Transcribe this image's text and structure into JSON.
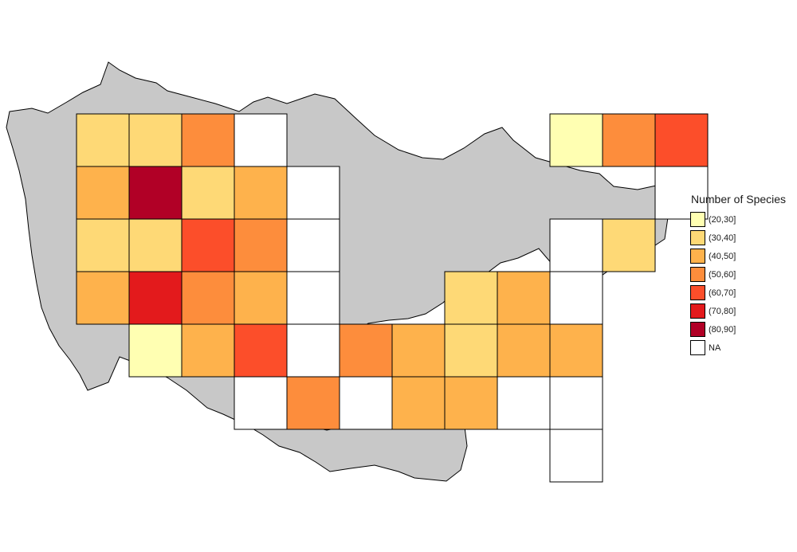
{
  "map": {
    "legend": {
      "title": "Number of Species",
      "items": [
        {
          "label": "(20,30]",
          "color": "#ffffb2"
        },
        {
          "label": "(30,40]",
          "color": "#fed976"
        },
        {
          "label": "(40,50]",
          "color": "#feb24c"
        },
        {
          "label": "(50,60]",
          "color": "#fd8d3c"
        },
        {
          "label": "(60,70]",
          "color": "#fc4e2a"
        },
        {
          "label": "(70,80]",
          "color": "#e31a1c"
        },
        {
          "label": "(80,90]",
          "color": "#b10026"
        },
        {
          "label": "NA",
          "color": "#ffffff"
        }
      ]
    },
    "land_color": "#c8c8c8",
    "grid_rows": [
      {
        "row": 1,
        "classes": [
          {
            "col": 1,
            "class": "(30,40]"
          },
          {
            "col": 2,
            "class": "(30,40]"
          },
          {
            "col": 3,
            "class": "(50,60]"
          },
          {
            "col": 4,
            "class": "NA"
          },
          {
            "col": 10,
            "class": "(20,30]"
          },
          {
            "col": 11,
            "class": "(50,60]"
          },
          {
            "col": 12,
            "class": "(60,70]"
          }
        ]
      },
      {
        "row": 2,
        "classes": [
          {
            "col": 1,
            "class": "(40,50]"
          },
          {
            "col": 2,
            "class": "(80,90]"
          },
          {
            "col": 3,
            "class": "(30,40]"
          },
          {
            "col": 4,
            "class": "(40,50]"
          },
          {
            "col": 5,
            "class": "NA"
          },
          {
            "col": 12,
            "class": "NA"
          }
        ]
      },
      {
        "row": 3,
        "classes": [
          {
            "col": 1,
            "class": "(30,40]"
          },
          {
            "col": 2,
            "class": "(30,40]"
          },
          {
            "col": 3,
            "class": "(60,70]"
          },
          {
            "col": 4,
            "class": "(50,60]"
          },
          {
            "col": 5,
            "class": "NA"
          },
          {
            "col": 10,
            "class": "NA"
          },
          {
            "col": 11,
            "class": "(30,40]"
          }
        ]
      },
      {
        "row": 4,
        "classes": [
          {
            "col": 1,
            "class": "(40,50]"
          },
          {
            "col": 2,
            "class": "(70,80]"
          },
          {
            "col": 3,
            "class": "(50,60]"
          },
          {
            "col": 4,
            "class": "(40,50]"
          },
          {
            "col": 5,
            "class": "NA"
          },
          {
            "col": 8,
            "class": "(30,40]"
          },
          {
            "col": 9,
            "class": "(40,50]"
          },
          {
            "col": 10,
            "class": "NA"
          }
        ]
      },
      {
        "row": 5,
        "classes": [
          {
            "col": 2,
            "class": "(20,30]"
          },
          {
            "col": 3,
            "class": "(40,50]"
          },
          {
            "col": 4,
            "class": "(60,70]"
          },
          {
            "col": 5,
            "class": "NA"
          },
          {
            "col": 6,
            "class": "(50,60]"
          },
          {
            "col": 7,
            "class": "(40,50]"
          },
          {
            "col": 8,
            "class": "(30,40]"
          },
          {
            "col": 9,
            "class": "(40,50]"
          },
          {
            "col": 10,
            "class": "(40,50]"
          }
        ]
      },
      {
        "row": 6,
        "classes": [
          {
            "col": 4,
            "class": "NA"
          },
          {
            "col": 5,
            "class": "(50,60]"
          },
          {
            "col": 6,
            "class": "NA"
          },
          {
            "col": 7,
            "class": "(40,50]"
          },
          {
            "col": 8,
            "class": "(40,50]"
          },
          {
            "col": 9,
            "class": "NA"
          },
          {
            "col": 10,
            "class": "NA"
          }
        ]
      },
      {
        "row": 7,
        "classes": [
          {
            "col": 10,
            "class": "NA"
          }
        ]
      }
    ]
  }
}
